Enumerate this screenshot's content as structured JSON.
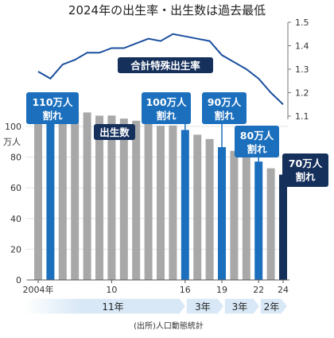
{
  "chart_data": {
    "type": "bar",
    "title": "2024年の出生率・出生数は過去最低",
    "categories": [
      "2004",
      "2005",
      "2006",
      "2007",
      "2008",
      "2009",
      "2010",
      "2011",
      "2012",
      "2013",
      "2014",
      "2015",
      "2016",
      "2017",
      "2018",
      "2019",
      "2020",
      "2021",
      "2022",
      "2023",
      "2024"
    ],
    "x_tick_labels": [
      "2004年",
      "10",
      "16",
      "19",
      "22",
      "24"
    ],
    "series": [
      {
        "name": "出生数",
        "values": [
          111.1,
          106.3,
          109.3,
          109.0,
          109.1,
          107.0,
          107.1,
          105.1,
          103.7,
          103.0,
          100.4,
          100.6,
          97.7,
          94.6,
          91.8,
          86.5,
          84.1,
          81.2,
          77.1,
          72.7,
          68.6
        ]
      },
      {
        "name": "合計特殊出生率",
        "values": [
          1.29,
          1.26,
          1.32,
          1.34,
          1.37,
          1.37,
          1.39,
          1.39,
          1.41,
          1.43,
          1.42,
          1.45,
          1.44,
          1.43,
          1.42,
          1.36,
          1.33,
          1.3,
          1.26,
          1.2,
          1.15
        ]
      }
    ],
    "ylabel_left": "万人",
    "left_axis_ticks": [
      "0",
      "20",
      "40",
      "60",
      "80",
      "100"
    ],
    "ylim_left": [
      0,
      115
    ],
    "right_axis_ticks": [
      "1.1",
      "1.2",
      "1.3",
      "1.4",
      "1.5"
    ],
    "ylim_right": [
      1.1,
      1.5
    ],
    "highlight_colors": {
      "gray": "#a8a8a8",
      "blue": "#1b6fbd",
      "navy": "#16305c",
      "line": "#1b4f9e",
      "band": "#d8e8f6"
    },
    "callouts": [
      {
        "line1": "110万人",
        "line2": "割れ",
        "year": "2005"
      },
      {
        "line1": "100万人",
        "line2": "割れ",
        "year": "2016"
      },
      {
        "line1": "90万人",
        "line2": "割れ",
        "year": "2019"
      },
      {
        "line1": "80万人",
        "line2": "割れ",
        "year": "2022"
      },
      {
        "line1": "70万人",
        "line2": "割れ",
        "year": "2024"
      }
    ],
    "series_labels": {
      "bars": "出生数",
      "line": "合計特殊出生率"
    },
    "interval_labels": [
      "11年",
      "3年",
      "3年",
      "2年"
    ],
    "source": "(出所)人口動態統計"
  }
}
